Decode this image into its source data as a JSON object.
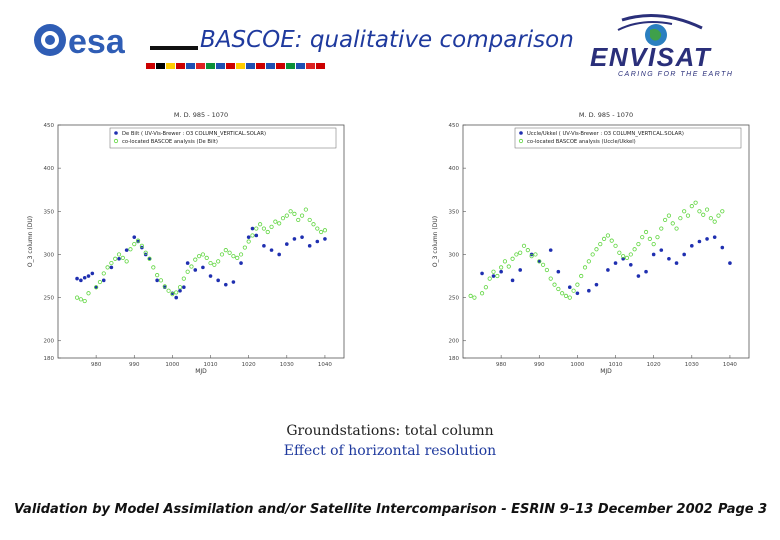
{
  "header": {
    "title": "BASCOE: qualitative comparison",
    "left_logo_text": "esa",
    "right_logo_text": "ENVISAT",
    "right_logo_tagline": "CARING FOR THE EARTH"
  },
  "colors": {
    "title_blue": "#1f3a9e",
    "obs_series": "#1f2fb0",
    "model_series": "#5fd63f"
  },
  "caption": {
    "line1": "Groundstations: total column",
    "line2": "Effect of horizontal resolution"
  },
  "footer": {
    "text": "Validation by Model Assimilation and/or Satellite Intercomparison - ESRIN 9–13 December 2002",
    "page": "Page 3"
  },
  "chart_data": [
    {
      "type": "scatter",
      "title": "M. D. 985 - 1070",
      "xlabel": "MJD",
      "ylabel": "O_3 column (DU)",
      "xlim": [
        970,
        1045
      ],
      "ylim": [
        180,
        450
      ],
      "xticks": [
        "980",
        "990",
        "1000",
        "1010",
        "1020",
        "1030",
        "1040"
      ],
      "yticks": [
        "180",
        "200",
        "250",
        "300",
        "350",
        "400",
        "450"
      ],
      "series": [
        {
          "name": "De Bilt ( UV-Vis-Brewer : O3 COLUMN_VERTICAL.SOLAR)",
          "marker": "filled-dot",
          "x": [
            975,
            976,
            977,
            978,
            979,
            980,
            982,
            984,
            986,
            988,
            990,
            991,
            992,
            993,
            994,
            996,
            998,
            1000,
            1001,
            1002,
            1003,
            1004,
            1006,
            1008,
            1010,
            1012,
            1014,
            1016,
            1018,
            1020,
            1021,
            1022,
            1024,
            1026,
            1028,
            1030,
            1032,
            1034,
            1036,
            1038,
            1040
          ],
          "y": [
            272,
            270,
            273,
            275,
            278,
            262,
            270,
            285,
            295,
            305,
            320,
            315,
            308,
            300,
            295,
            270,
            262,
            255,
            250,
            258,
            262,
            290,
            282,
            285,
            275,
            270,
            265,
            268,
            290,
            320,
            330,
            322,
            310,
            305,
            300,
            312,
            318,
            320,
            310,
            315,
            318
          ]
        },
        {
          "name": "co-located BASCOE analysis (De Bilt)",
          "marker": "open-circle",
          "x": [
            975,
            976,
            977,
            978,
            980,
            981,
            982,
            983,
            984,
            985,
            986,
            987,
            988,
            989,
            990,
            991,
            992,
            993,
            994,
            995,
            996,
            997,
            998,
            999,
            1000,
            1001,
            1002,
            1003,
            1004,
            1005,
            1006,
            1007,
            1008,
            1009,
            1010,
            1011,
            1012,
            1013,
            1014,
            1015,
            1016,
            1017,
            1018,
            1019,
            1020,
            1021,
            1022,
            1023,
            1024,
            1025,
            1026,
            1027,
            1028,
            1029,
            1030,
            1031,
            1032,
            1033,
            1034,
            1035,
            1036,
            1037,
            1038,
            1039,
            1040
          ],
          "y": [
            250,
            248,
            246,
            255,
            262,
            268,
            278,
            285,
            290,
            295,
            300,
            296,
            292,
            306,
            312,
            316,
            310,
            302,
            295,
            285,
            276,
            270,
            263,
            258,
            254,
            256,
            262,
            272,
            280,
            286,
            294,
            298,
            300,
            296,
            290,
            288,
            292,
            300,
            305,
            302,
            298,
            296,
            300,
            308,
            315,
            322,
            330,
            335,
            330,
            326,
            332,
            338,
            336,
            342,
            345,
            350,
            347,
            340,
            345,
            352,
            340,
            335,
            330,
            326,
            328
          ]
        }
      ]
    },
    {
      "type": "scatter",
      "title": "M. D. 985 - 1070",
      "xlabel": "MJD",
      "ylabel": "O_3 column (DU)",
      "xlim": [
        970,
        1045
      ],
      "ylim": [
        180,
        450
      ],
      "xticks": [
        "980",
        "990",
        "1000",
        "1010",
        "1020",
        "1030",
        "1040"
      ],
      "yticks": [
        "180",
        "200",
        "250",
        "300",
        "350",
        "400",
        "450"
      ],
      "series": [
        {
          "name": "Uccle/Ukkel ( UV-Vis-Brewer : O3 COLUMN_VERTICAL.SOLAR)",
          "marker": "filled-dot",
          "x": [
            975,
            978,
            980,
            983,
            985,
            988,
            990,
            993,
            995,
            998,
            1000,
            1003,
            1005,
            1008,
            1010,
            1012,
            1014,
            1016,
            1018,
            1020,
            1022,
            1024,
            1026,
            1028,
            1030,
            1032,
            1034,
            1036,
            1038,
            1040
          ],
          "y": [
            278,
            275,
            280,
            270,
            282,
            300,
            292,
            305,
            280,
            262,
            255,
            258,
            265,
            282,
            290,
            295,
            288,
            275,
            280,
            300,
            305,
            295,
            290,
            300,
            310,
            315,
            318,
            320,
            308,
            290
          ]
        },
        {
          "name": "co-located BASCOE analysis (Uccle/Ukkel)",
          "marker": "open-circle",
          "x": [
            972,
            973,
            975,
            976,
            977,
            978,
            979,
            980,
            981,
            982,
            983,
            984,
            985,
            986,
            987,
            988,
            989,
            990,
            991,
            992,
            993,
            994,
            995,
            996,
            997,
            998,
            999,
            1000,
            1001,
            1002,
            1003,
            1004,
            1005,
            1006,
            1007,
            1008,
            1009,
            1010,
            1011,
            1012,
            1013,
            1014,
            1015,
            1016,
            1017,
            1018,
            1019,
            1020,
            1021,
            1022,
            1023,
            1024,
            1025,
            1026,
            1027,
            1028,
            1029,
            1030,
            1031,
            1032,
            1033,
            1034,
            1035,
            1036,
            1037,
            1038
          ],
          "y": [
            252,
            250,
            255,
            262,
            272,
            280,
            275,
            285,
            292,
            286,
            295,
            300,
            302,
            310,
            305,
            298,
            300,
            292,
            288,
            282,
            272,
            265,
            260,
            255,
            252,
            250,
            258,
            265,
            275,
            285,
            292,
            300,
            306,
            312,
            318,
            322,
            316,
            310,
            302,
            298,
            296,
            300,
            306,
            312,
            320,
            326,
            318,
            312,
            320,
            330,
            340,
            345,
            336,
            330,
            342,
            350,
            345,
            356,
            360,
            350,
            346,
            352,
            342,
            338,
            345,
            350
          ]
        }
      ]
    }
  ]
}
